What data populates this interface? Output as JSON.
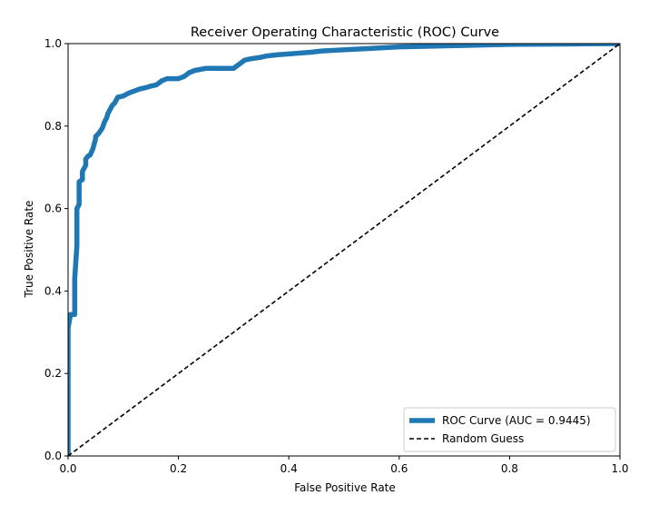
{
  "chart_data": {
    "type": "line",
    "title": "Receiver Operating Characteristic (ROC) Curve",
    "xlabel": "False Positive Rate",
    "ylabel": "True Positive Rate",
    "xlim": [
      0,
      1
    ],
    "ylim": [
      0,
      1
    ],
    "xticks": [
      "0.0",
      "0.2",
      "0.4",
      "0.6",
      "0.8",
      "1.0"
    ],
    "yticks": [
      "0.0",
      "0.2",
      "0.4",
      "0.6",
      "0.8",
      "1.0"
    ],
    "grid": false,
    "legend_position": "bottom-right",
    "series": [
      {
        "name": "ROC Curve (AUC = 0.9445)",
        "style": "solid",
        "color": "#1f77b4",
        "x": [
          0.0,
          0.0,
          0.004,
          0.004,
          0.012,
          0.012,
          0.016,
          0.016,
          0.02,
          0.02,
          0.026,
          0.026,
          0.032,
          0.032,
          0.036,
          0.04,
          0.045,
          0.05,
          0.05,
          0.056,
          0.062,
          0.066,
          0.07,
          0.072,
          0.076,
          0.08,
          0.085,
          0.09,
          0.1,
          0.11,
          0.12,
          0.13,
          0.14,
          0.15,
          0.16,
          0.17,
          0.18,
          0.2,
          0.21,
          0.22,
          0.23,
          0.25,
          0.3,
          0.32,
          0.33,
          0.35,
          0.36,
          0.38,
          0.4,
          0.42,
          0.44,
          0.46,
          0.5,
          0.6,
          0.7,
          0.8,
          0.9,
          1.0
        ],
        "y": [
          0.0,
          0.31,
          0.34,
          0.343,
          0.343,
          0.43,
          0.51,
          0.6,
          0.61,
          0.665,
          0.67,
          0.69,
          0.705,
          0.72,
          0.727,
          0.73,
          0.745,
          0.77,
          0.775,
          0.783,
          0.795,
          0.81,
          0.82,
          0.83,
          0.84,
          0.85,
          0.857,
          0.87,
          0.873,
          0.88,
          0.885,
          0.89,
          0.893,
          0.897,
          0.9,
          0.91,
          0.915,
          0.915,
          0.92,
          0.93,
          0.935,
          0.94,
          0.94,
          0.96,
          0.963,
          0.967,
          0.97,
          0.973,
          0.975,
          0.977,
          0.979,
          0.982,
          0.985,
          0.992,
          0.995,
          0.998,
          0.999,
          1.0
        ]
      },
      {
        "name": "Random Guess",
        "style": "dashed",
        "color": "#000000",
        "x": [
          0,
          1
        ],
        "y": [
          0,
          1
        ]
      }
    ]
  }
}
